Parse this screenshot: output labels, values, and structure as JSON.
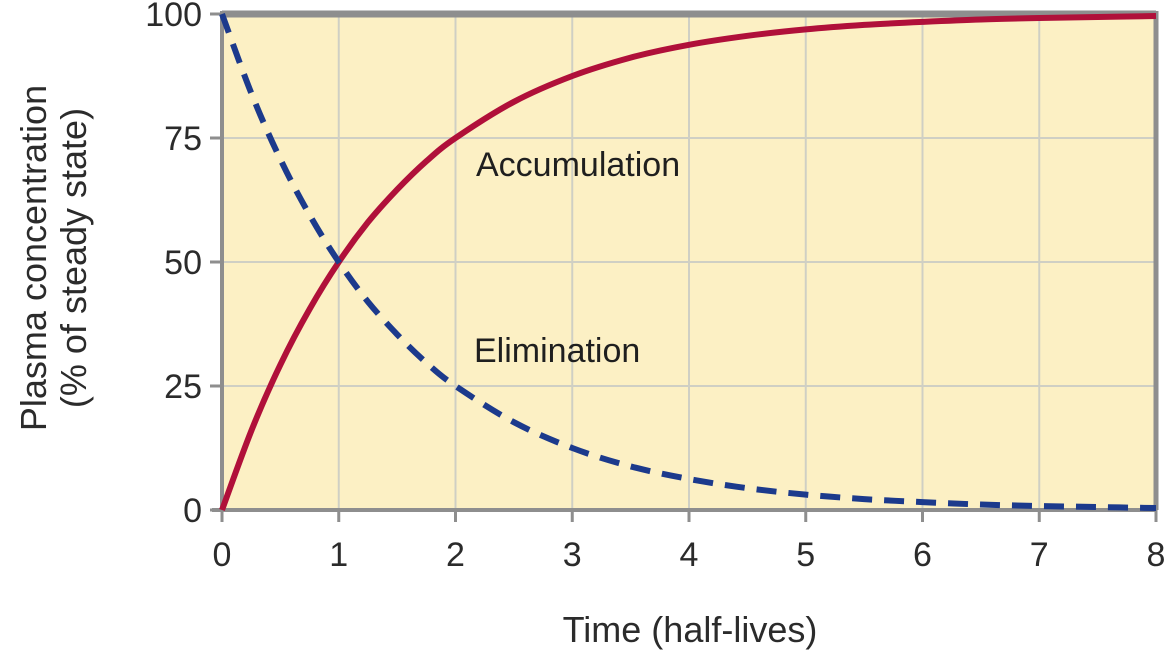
{
  "chart_data": {
    "type": "line",
    "xlabel": "Time (half-lives)",
    "ylabel": [
      "Plasma concentration",
      "(% of steady state)"
    ],
    "xlim": [
      0,
      8
    ],
    "ylim": [
      0,
      100
    ],
    "x_ticks": [
      "0",
      "1",
      "2",
      "3",
      "4",
      "5",
      "6",
      "7",
      "8"
    ],
    "y_ticks": [
      "0",
      "25",
      "50",
      "75",
      "100"
    ],
    "grid": true,
    "colors": {
      "background": "#fcf0c4",
      "grid": "#cfcfc4",
      "frame": "#8e8e8e",
      "accumulation": "#b0103a",
      "elimination": "#1c3a8c"
    },
    "x": [
      0,
      0.25,
      0.5,
      0.75,
      1,
      1.25,
      1.5,
      1.75,
      2,
      2.5,
      3,
      3.5,
      4,
      4.5,
      5,
      5.5,
      6,
      6.5,
      7,
      7.5,
      8
    ],
    "series": [
      {
        "name": "Accumulation",
        "style": "solid",
        "values": [
          0,
          15.9,
          29.3,
          40.5,
          50,
          58,
          64.6,
          70.3,
          75,
          82.3,
          87.5,
          91.2,
          93.8,
          95.6,
          96.9,
          97.8,
          98.4,
          98.9,
          99.2,
          99.4,
          99.6
        ]
      },
      {
        "name": "Elimination",
        "style": "dashed",
        "values": [
          100,
          84.1,
          70.7,
          59.5,
          50,
          42,
          35.4,
          29.7,
          25,
          17.7,
          12.5,
          8.8,
          6.25,
          4.4,
          3.1,
          2.2,
          1.6,
          1.1,
          0.8,
          0.6,
          0.4
        ]
      }
    ]
  }
}
